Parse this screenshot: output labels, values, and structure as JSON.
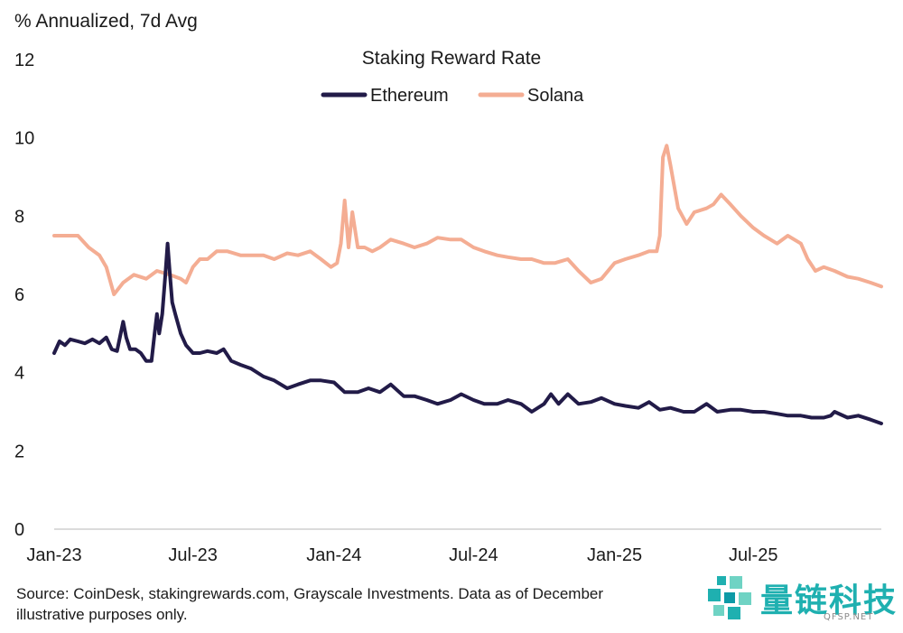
{
  "chart_data": {
    "type": "line",
    "title": "Staking Reward Rate",
    "ylabel": "% Annualized, 7d Avg",
    "xlabel": "",
    "ylim": [
      0,
      12
    ],
    "yticks": [
      0,
      2,
      4,
      6,
      8,
      10,
      12
    ],
    "xlim": [
      "2023-01-01",
      "2025-12-15"
    ],
    "xticks": [
      {
        "date": "2023-01-01",
        "label": "Jan-23"
      },
      {
        "date": "2023-07-01",
        "label": "Jul-23"
      },
      {
        "date": "2024-01-01",
        "label": "Jan-24"
      },
      {
        "date": "2024-07-01",
        "label": "Jul-24"
      },
      {
        "date": "2025-01-01",
        "label": "Jan-25"
      },
      {
        "date": "2025-07-01",
        "label": "Jul-25"
      }
    ],
    "grid": false,
    "legend": "top-center",
    "series": [
      {
        "name": "Ethereum",
        "color": "#221b48",
        "points": [
          [
            "2023-01-01",
            4.5
          ],
          [
            "2023-01-08",
            4.8
          ],
          [
            "2023-01-15",
            4.7
          ],
          [
            "2023-01-22",
            4.85
          ],
          [
            "2023-02-01",
            4.8
          ],
          [
            "2023-02-10",
            4.75
          ],
          [
            "2023-02-20",
            4.85
          ],
          [
            "2023-03-01",
            4.75
          ],
          [
            "2023-03-10",
            4.9
          ],
          [
            "2023-03-17",
            4.6
          ],
          [
            "2023-03-24",
            4.55
          ],
          [
            "2023-04-01",
            5.3
          ],
          [
            "2023-04-05",
            4.9
          ],
          [
            "2023-04-10",
            4.6
          ],
          [
            "2023-04-17",
            4.6
          ],
          [
            "2023-04-24",
            4.5
          ],
          [
            "2023-05-01",
            4.3
          ],
          [
            "2023-05-08",
            4.3
          ],
          [
            "2023-05-12",
            5.0
          ],
          [
            "2023-05-15",
            5.5
          ],
          [
            "2023-05-18",
            5.0
          ],
          [
            "2023-05-22",
            5.5
          ],
          [
            "2023-05-26",
            6.5
          ],
          [
            "2023-05-29",
            7.3
          ],
          [
            "2023-06-01",
            6.5
          ],
          [
            "2023-06-04",
            5.8
          ],
          [
            "2023-06-08",
            5.5
          ],
          [
            "2023-06-15",
            5.0
          ],
          [
            "2023-06-22",
            4.7
          ],
          [
            "2023-07-01",
            4.5
          ],
          [
            "2023-07-10",
            4.5
          ],
          [
            "2023-07-20",
            4.55
          ],
          [
            "2023-08-01",
            4.5
          ],
          [
            "2023-08-10",
            4.6
          ],
          [
            "2023-08-20",
            4.3
          ],
          [
            "2023-09-01",
            4.2
          ],
          [
            "2023-09-15",
            4.1
          ],
          [
            "2023-10-01",
            3.9
          ],
          [
            "2023-10-15",
            3.8
          ],
          [
            "2023-11-01",
            3.6
          ],
          [
            "2023-11-15",
            3.7
          ],
          [
            "2023-12-01",
            3.8
          ],
          [
            "2023-12-15",
            3.8
          ],
          [
            "2024-01-01",
            3.75
          ],
          [
            "2024-01-15",
            3.5
          ],
          [
            "2024-02-01",
            3.5
          ],
          [
            "2024-02-15",
            3.6
          ],
          [
            "2024-03-01",
            3.5
          ],
          [
            "2024-03-15",
            3.7
          ],
          [
            "2024-04-01",
            3.4
          ],
          [
            "2024-04-15",
            3.4
          ],
          [
            "2024-05-01",
            3.3
          ],
          [
            "2024-05-15",
            3.2
          ],
          [
            "2024-06-01",
            3.3
          ],
          [
            "2024-06-15",
            3.45
          ],
          [
            "2024-07-01",
            3.3
          ],
          [
            "2024-07-15",
            3.2
          ],
          [
            "2024-08-01",
            3.2
          ],
          [
            "2024-08-15",
            3.3
          ],
          [
            "2024-09-01",
            3.2
          ],
          [
            "2024-09-15",
            3.0
          ],
          [
            "2024-10-01",
            3.2
          ],
          [
            "2024-10-10",
            3.45
          ],
          [
            "2024-10-20",
            3.2
          ],
          [
            "2024-11-01",
            3.45
          ],
          [
            "2024-11-15",
            3.2
          ],
          [
            "2024-12-01",
            3.25
          ],
          [
            "2024-12-15",
            3.35
          ],
          [
            "2025-01-01",
            3.2
          ],
          [
            "2025-01-15",
            3.15
          ],
          [
            "2025-02-01",
            3.1
          ],
          [
            "2025-02-15",
            3.25
          ],
          [
            "2025-03-01",
            3.05
          ],
          [
            "2025-03-15",
            3.1
          ],
          [
            "2025-04-01",
            3.0
          ],
          [
            "2025-04-15",
            3.0
          ],
          [
            "2025-05-01",
            3.2
          ],
          [
            "2025-05-15",
            3.0
          ],
          [
            "2025-06-01",
            3.05
          ],
          [
            "2025-06-15",
            3.05
          ],
          [
            "2025-07-01",
            3.0
          ],
          [
            "2025-07-15",
            3.0
          ],
          [
            "2025-08-01",
            2.95
          ],
          [
            "2025-08-15",
            2.9
          ],
          [
            "2025-09-01",
            2.9
          ],
          [
            "2025-09-15",
            2.85
          ],
          [
            "2025-10-01",
            2.85
          ],
          [
            "2025-10-10",
            2.9
          ],
          [
            "2025-10-15",
            3.0
          ],
          [
            "2025-11-01",
            2.85
          ],
          [
            "2025-11-15",
            2.9
          ],
          [
            "2025-12-01",
            2.8
          ],
          [
            "2025-12-15",
            2.7
          ]
        ]
      },
      {
        "name": "Solana",
        "color": "#f4ad93",
        "points": [
          [
            "2023-01-01",
            7.5
          ],
          [
            "2023-01-15",
            7.5
          ],
          [
            "2023-02-01",
            7.5
          ],
          [
            "2023-02-15",
            7.2
          ],
          [
            "2023-03-01",
            7.0
          ],
          [
            "2023-03-10",
            6.7
          ],
          [
            "2023-03-20",
            6.0
          ],
          [
            "2023-04-01",
            6.3
          ],
          [
            "2023-04-15",
            6.5
          ],
          [
            "2023-05-01",
            6.4
          ],
          [
            "2023-05-15",
            6.6
          ],
          [
            "2023-06-01",
            6.5
          ],
          [
            "2023-06-15",
            6.4
          ],
          [
            "2023-06-22",
            6.3
          ],
          [
            "2023-07-01",
            6.7
          ],
          [
            "2023-07-10",
            6.9
          ],
          [
            "2023-07-20",
            6.9
          ],
          [
            "2023-08-01",
            7.1
          ],
          [
            "2023-08-15",
            7.1
          ],
          [
            "2023-09-01",
            7.0
          ],
          [
            "2023-09-15",
            7.0
          ],
          [
            "2023-10-01",
            7.0
          ],
          [
            "2023-10-15",
            6.9
          ],
          [
            "2023-11-01",
            7.05
          ],
          [
            "2023-11-15",
            7.0
          ],
          [
            "2023-12-01",
            7.1
          ],
          [
            "2023-12-15",
            6.9
          ],
          [
            "2023-12-28",
            6.7
          ],
          [
            "2024-01-05",
            6.8
          ],
          [
            "2024-01-10",
            7.3
          ],
          [
            "2024-01-15",
            8.4
          ],
          [
            "2024-01-20",
            7.2
          ],
          [
            "2024-01-25",
            8.1
          ],
          [
            "2024-02-01",
            7.2
          ],
          [
            "2024-02-10",
            7.2
          ],
          [
            "2024-02-20",
            7.1
          ],
          [
            "2024-03-01",
            7.2
          ],
          [
            "2024-03-15",
            7.4
          ],
          [
            "2024-04-01",
            7.3
          ],
          [
            "2024-04-15",
            7.2
          ],
          [
            "2024-05-01",
            7.3
          ],
          [
            "2024-05-15",
            7.45
          ],
          [
            "2024-06-01",
            7.4
          ],
          [
            "2024-06-15",
            7.4
          ],
          [
            "2024-07-01",
            7.2
          ],
          [
            "2024-07-15",
            7.1
          ],
          [
            "2024-08-01",
            7.0
          ],
          [
            "2024-08-15",
            6.95
          ],
          [
            "2024-09-01",
            6.9
          ],
          [
            "2024-09-15",
            6.9
          ],
          [
            "2024-10-01",
            6.8
          ],
          [
            "2024-10-15",
            6.8
          ],
          [
            "2024-11-01",
            6.9
          ],
          [
            "2024-11-15",
            6.6
          ],
          [
            "2024-12-01",
            6.3
          ],
          [
            "2024-12-15",
            6.4
          ],
          [
            "2025-01-01",
            6.8
          ],
          [
            "2025-01-15",
            6.9
          ],
          [
            "2025-02-01",
            7.0
          ],
          [
            "2025-02-15",
            7.1
          ],
          [
            "2025-02-25",
            7.1
          ],
          [
            "2025-03-01",
            7.5
          ],
          [
            "2025-03-05",
            9.5
          ],
          [
            "2025-03-10",
            9.8
          ],
          [
            "2025-03-15",
            9.3
          ],
          [
            "2025-03-25",
            8.2
          ],
          [
            "2025-04-05",
            7.8
          ],
          [
            "2025-04-15",
            8.1
          ],
          [
            "2025-05-01",
            8.2
          ],
          [
            "2025-05-10",
            8.3
          ],
          [
            "2025-05-20",
            8.55
          ],
          [
            "2025-06-01",
            8.3
          ],
          [
            "2025-06-15",
            8.0
          ],
          [
            "2025-07-01",
            7.7
          ],
          [
            "2025-07-15",
            7.5
          ],
          [
            "2025-08-01",
            7.3
          ],
          [
            "2025-08-15",
            7.5
          ],
          [
            "2025-09-01",
            7.3
          ],
          [
            "2025-09-10",
            6.9
          ],
          [
            "2025-09-20",
            6.6
          ],
          [
            "2025-10-01",
            6.7
          ],
          [
            "2025-10-15",
            6.6
          ],
          [
            "2025-11-01",
            6.45
          ],
          [
            "2025-11-15",
            6.4
          ],
          [
            "2025-12-01",
            6.3
          ],
          [
            "2025-12-15",
            6.2
          ]
        ]
      }
    ]
  },
  "source_text": "Source: CoinDesk, stakingrewards.com, Grayscale Investments. Data as of December\nillustrative purposes only.",
  "watermark": {
    "logo_text": "量链科技",
    "sub_text": "QFSP.NET"
  }
}
